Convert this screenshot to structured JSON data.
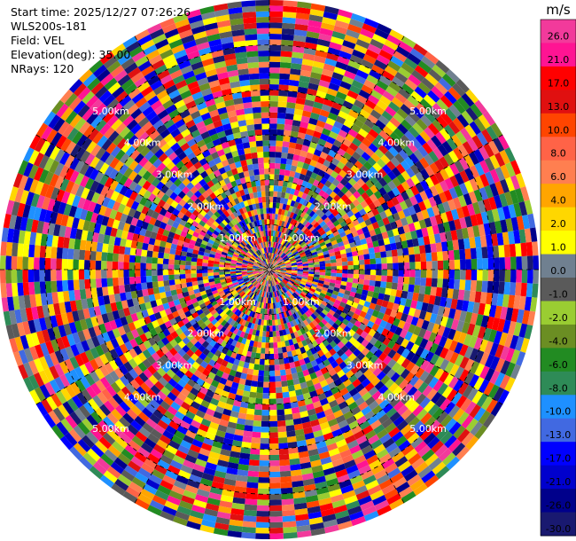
{
  "info": {
    "start_time": "Start time: 2025/12/27 07:26:26",
    "site": "WLS200s-181",
    "field": "Field: VEL",
    "elevation": "Elevation(deg): 35.00",
    "nrays": "NRays: 120"
  },
  "chart_data": {
    "type": "heatmap",
    "projection": "polar-ppi",
    "field": "VEL",
    "n_rays": 120,
    "n_range_gates": 48,
    "range_max_km": 6.0,
    "ring_labels": [
      "1.00km",
      "2.00km",
      "3.00km",
      "4.00km",
      "5.00km"
    ],
    "ring_km": [
      1,
      2,
      3,
      4,
      5
    ],
    "colorbar": {
      "unit": "m/s",
      "tick_labels": [
        "26.0",
        "21.0",
        "17.0",
        "13.0",
        "10.0",
        "8.0",
        "6.0",
        "4.0",
        "2.0",
        "1.0",
        "0.0",
        "-1.0",
        "-2.0",
        "-4.0",
        "-6.0",
        "-8.0",
        "-10.0",
        "-13.0",
        "-17.0",
        "-21.0",
        "-26.0",
        "-30.0"
      ],
      "colors": [
        "#f23a9b",
        "#ff1493",
        "#ff0000",
        "#e01010",
        "#ff4500",
        "#ff6347",
        "#ff7f50",
        "#ffa500",
        "#ffd700",
        "#ffff00",
        "#708090",
        "#5a5a5a",
        "#9acd32",
        "#6b8e23",
        "#228b22",
        "#2e8b57",
        "#1e90ff",
        "#4169e1",
        "#0000ff",
        "#0000cd",
        "#00008b",
        "#191970"
      ]
    }
  }
}
